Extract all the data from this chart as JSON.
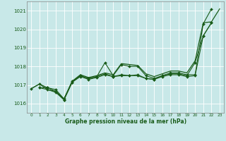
{
  "title": "Graphe pression niveau de la mer (hPa)",
  "bg_color": "#c8e8e8",
  "grid_color": "#b0d0d0",
  "line_color": "#1a5c1a",
  "marker_color": "#1a5c1a",
  "xlim": [
    -0.5,
    23.5
  ],
  "ylim": [
    1015.5,
    1021.5
  ],
  "yticks": [
    1016,
    1017,
    1018,
    1019,
    1020,
    1021
  ],
  "xticks": [
    0,
    1,
    2,
    3,
    4,
    5,
    6,
    7,
    8,
    9,
    10,
    11,
    12,
    13,
    14,
    15,
    16,
    17,
    18,
    19,
    20,
    21,
    22,
    23
  ],
  "smooth_x": [
    0,
    1,
    2,
    3,
    4,
    5,
    6,
    7,
    8,
    9,
    10,
    11,
    12,
    13,
    14,
    15,
    16,
    17,
    18,
    19,
    20,
    21,
    22,
    23
  ],
  "smooth_y": [
    1016.8,
    1017.05,
    1016.75,
    1016.65,
    1016.25,
    1017.2,
    1017.55,
    1017.4,
    1017.5,
    1017.65,
    1017.55,
    1018.15,
    1018.1,
    1018.05,
    1017.6,
    1017.45,
    1017.6,
    1017.75,
    1017.75,
    1017.65,
    1018.3,
    1020.35,
    1020.4,
    1021.1
  ],
  "line1_x": [
    0,
    1,
    2,
    3,
    4,
    5,
    6,
    7,
    8,
    9,
    10,
    11,
    12,
    13,
    14,
    15,
    16,
    17,
    18,
    19,
    20,
    21,
    22
  ],
  "line1_y": [
    1016.8,
    1017.05,
    1016.85,
    1016.75,
    1016.25,
    1017.2,
    1017.5,
    1017.35,
    1017.45,
    1018.2,
    1017.5,
    1018.1,
    1018.0,
    1018.0,
    1017.5,
    1017.35,
    1017.5,
    1017.65,
    1017.65,
    1017.55,
    1017.55,
    1020.3,
    1021.1
  ],
  "line2_x": [
    1,
    2,
    3,
    4,
    5,
    6,
    7,
    8,
    9,
    10,
    11,
    12,
    13,
    14,
    15,
    16,
    17,
    18,
    19,
    20,
    21,
    22
  ],
  "line2_y": [
    1016.85,
    1016.75,
    1016.6,
    1016.2,
    1017.15,
    1017.45,
    1017.3,
    1017.4,
    1017.55,
    1017.45,
    1017.5,
    1017.5,
    1017.5,
    1017.35,
    1017.3,
    1017.45,
    1017.55,
    1017.55,
    1017.45,
    1017.5,
    1019.65,
    1020.35
  ],
  "line3_x": [
    1,
    2,
    3,
    4,
    5,
    6,
    7,
    8,
    9,
    10,
    11,
    12,
    13,
    14,
    15,
    16,
    17,
    18,
    19,
    20,
    21,
    22
  ],
  "line3_y": [
    1016.85,
    1016.85,
    1016.65,
    1016.2,
    1017.15,
    1017.5,
    1017.35,
    1017.45,
    1017.6,
    1017.45,
    1017.55,
    1017.5,
    1017.55,
    1017.35,
    1017.3,
    1017.5,
    1017.6,
    1017.6,
    1017.5,
    1018.2,
    1019.65,
    1020.35
  ]
}
